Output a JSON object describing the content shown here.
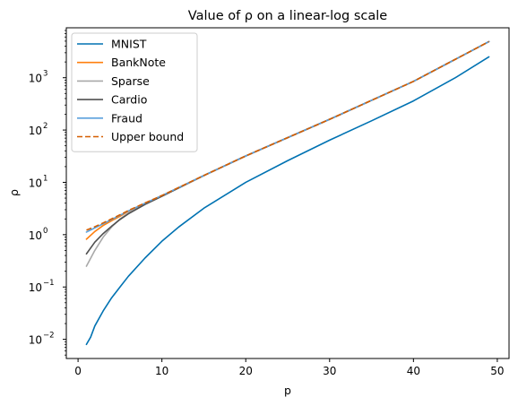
{
  "chart_data": {
    "type": "line",
    "title": "Value of ρ on a linear-log scale",
    "xlabel": "p",
    "ylabel": "ρ",
    "xlim": [
      -1.4,
      51.4
    ],
    "ylim": [
      0.0043,
      9000
    ],
    "yscale": "log",
    "grid": false,
    "legend_position": "top-left",
    "x_ticks": [
      {
        "value": 0,
        "label": "0"
      },
      {
        "value": 10,
        "label": "10"
      },
      {
        "value": 20,
        "label": "20"
      },
      {
        "value": 30,
        "label": "30"
      },
      {
        "value": 40,
        "label": "40"
      },
      {
        "value": 50,
        "label": "50"
      }
    ],
    "y_ticks": [
      {
        "value": 0.01,
        "base": "10",
        "exp": "−2"
      },
      {
        "value": 0.1,
        "base": "10",
        "exp": "−1"
      },
      {
        "value": 1,
        "base": "10",
        "exp": "0"
      },
      {
        "value": 10,
        "base": "10",
        "exp": "1"
      },
      {
        "value": 100,
        "base": "10",
        "exp": "2"
      },
      {
        "value": 1000,
        "base": "10",
        "exp": "3"
      }
    ],
    "series": [
      {
        "name": "MNIST",
        "color": "#0072b2",
        "dash": "solid",
        "x": [
          1,
          1.5,
          2,
          3,
          4,
          5,
          6,
          8,
          10,
          12,
          15,
          20,
          25,
          30,
          35,
          40,
          45,
          49
        ],
        "y": [
          0.008,
          0.011,
          0.018,
          0.035,
          0.062,
          0.1,
          0.16,
          0.36,
          0.75,
          1.4,
          3.2,
          10,
          26,
          64,
          150,
          360,
          1000,
          2500
        ]
      },
      {
        "name": "BankNote",
        "color": "#ff7f0e",
        "dash": "solid",
        "x": [
          1,
          2,
          3,
          4,
          5,
          6,
          8,
          10,
          15,
          20,
          30,
          40,
          49
        ],
        "y": [
          0.82,
          1.15,
          1.5,
          1.85,
          2.25,
          2.8,
          4.0,
          5.6,
          13.5,
          32,
          160,
          850,
          4900
        ]
      },
      {
        "name": "Sparse",
        "color": "#a9a9a9",
        "dash": "solid",
        "x": [
          1,
          2,
          3,
          4,
          5,
          6,
          8,
          10,
          15,
          20,
          30,
          40,
          49
        ],
        "y": [
          0.25,
          0.5,
          0.9,
          1.4,
          2.0,
          2.6,
          3.9,
          5.5,
          13.5,
          32,
          160,
          850,
          4900
        ]
      },
      {
        "name": "Cardio",
        "color": "#505050",
        "dash": "solid",
        "x": [
          1,
          2,
          3,
          4,
          5,
          6,
          8,
          10,
          15,
          20,
          30,
          40,
          49
        ],
        "y": [
          0.43,
          0.72,
          1.05,
          1.45,
          1.95,
          2.5,
          3.8,
          5.4,
          13.5,
          32,
          160,
          850,
          4900
        ]
      },
      {
        "name": "Fraud",
        "color": "#5aa0dc",
        "dash": "solid",
        "x": [
          1,
          2,
          3,
          4,
          5,
          6,
          8,
          10,
          15,
          20,
          30,
          40,
          49
        ],
        "y": [
          1.12,
          1.35,
          1.62,
          1.95,
          2.35,
          2.85,
          4.0,
          5.6,
          13.5,
          32,
          160,
          850,
          4900
        ]
      },
      {
        "name": "Upper bound",
        "color": "#d55e00",
        "dash": "dashed",
        "x": [
          1,
          2,
          3,
          4,
          5,
          6,
          8,
          10,
          15,
          20,
          30,
          40,
          49
        ],
        "y": [
          1.22,
          1.42,
          1.68,
          2.0,
          2.4,
          2.9,
          4.05,
          5.6,
          13.5,
          32,
          160,
          850,
          4900
        ]
      }
    ]
  }
}
